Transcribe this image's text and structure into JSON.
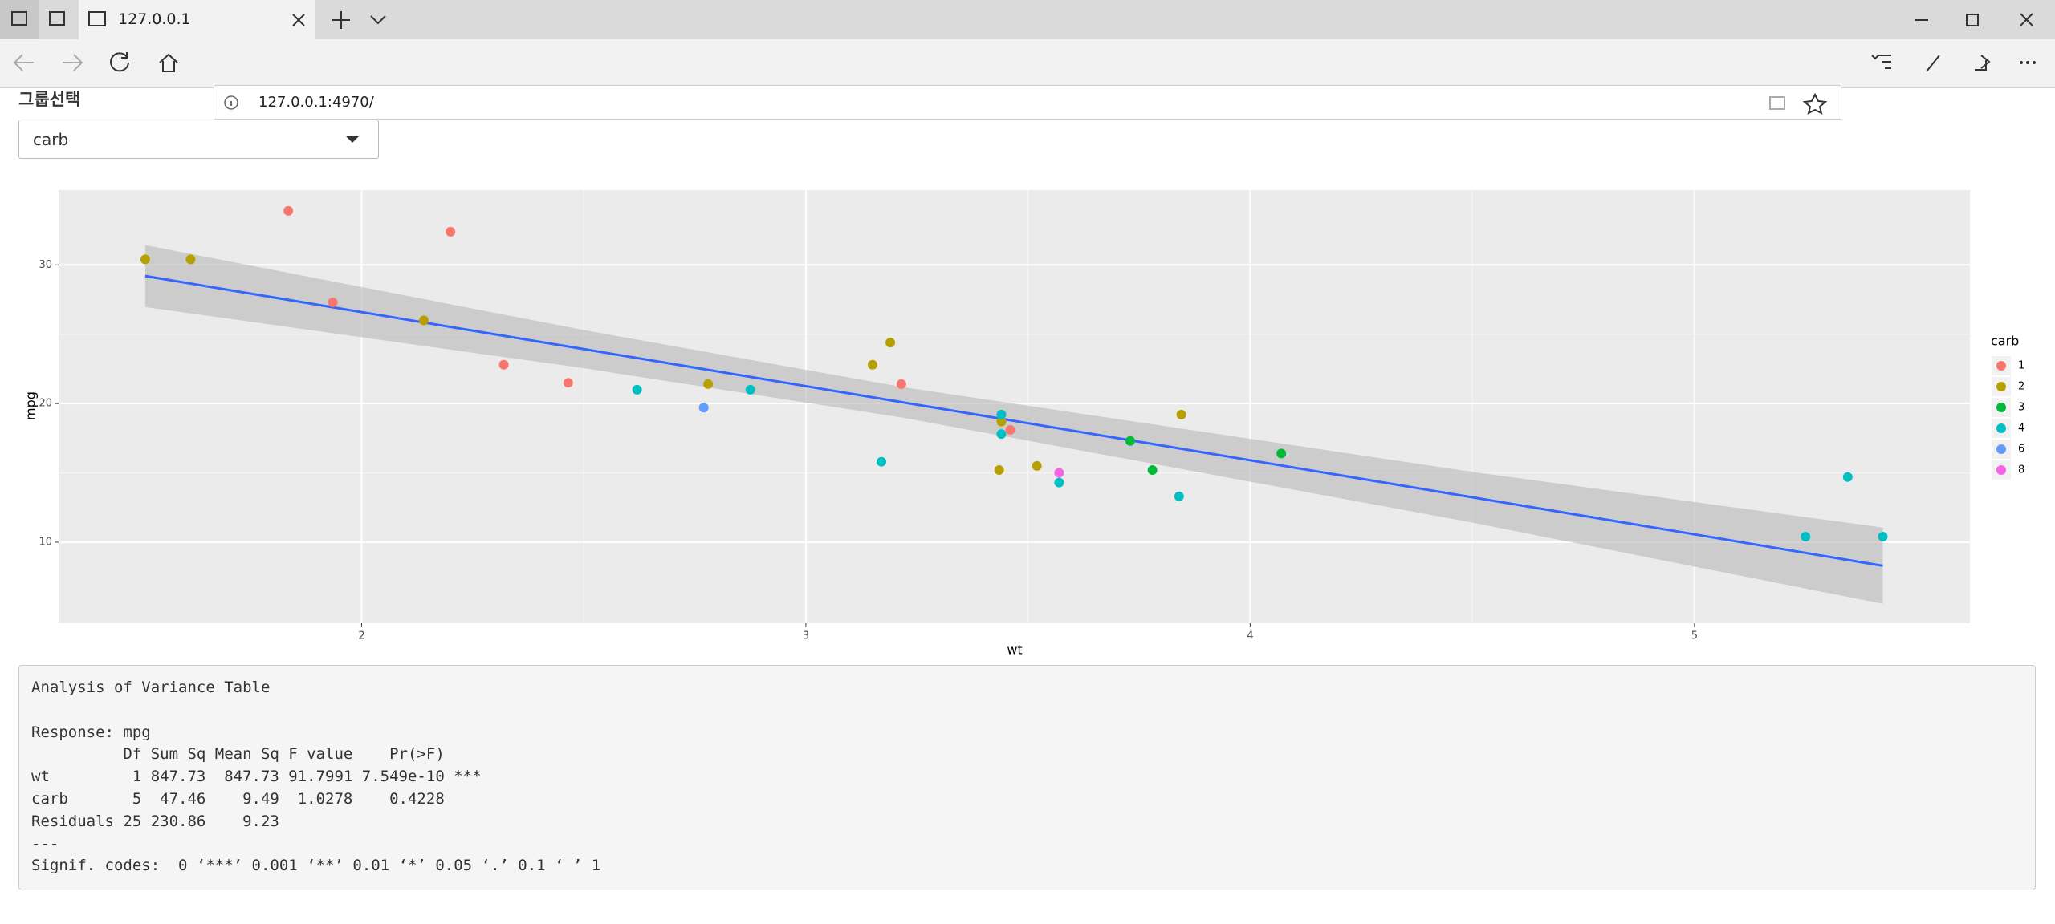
{
  "browser": {
    "tab_title": "127.0.0.1",
    "url": "127.0.0.1:4970/"
  },
  "control": {
    "label": "그룹선택",
    "selected": "carb"
  },
  "chart_data": {
    "type": "scatter",
    "x_label": "wt",
    "y_label": "mpg",
    "legend_title": "carb",
    "legend_position": "right",
    "grid": true,
    "xlim": [
      1.318,
      5.62
    ],
    "ylim": [
      4.15,
      35.4
    ],
    "xticks": [
      2,
      3,
      4,
      5
    ],
    "yticks": [
      10,
      20,
      30
    ],
    "series": [
      {
        "name": "1",
        "color": "#F8766D",
        "x": [
          2.32,
          3.215,
          3.46,
          2.2,
          1.835,
          2.465,
          1.935
        ],
        "values": [
          22.8,
          21.4,
          18.1,
          32.4,
          33.9,
          21.5,
          27.3
        ]
      },
      {
        "name": "2",
        "color": "#B79F00",
        "x": [
          3.44,
          3.19,
          3.15,
          1.615,
          3.52,
          3.435,
          3.845,
          2.14,
          1.513,
          2.78
        ],
        "values": [
          18.7,
          24.4,
          22.8,
          30.4,
          15.5,
          15.2,
          19.2,
          26.0,
          30.4,
          21.4
        ]
      },
      {
        "name": "3",
        "color": "#00BA38",
        "x": [
          4.07,
          3.73,
          3.78
        ],
        "values": [
          16.4,
          17.3,
          15.2
        ]
      },
      {
        "name": "4",
        "color": "#00BFC4",
        "x": [
          2.62,
          2.875,
          3.57,
          3.44,
          3.44,
          5.25,
          5.424,
          5.345,
          3.84,
          3.17
        ],
        "values": [
          21.0,
          21.0,
          14.3,
          19.2,
          17.8,
          10.4,
          10.4,
          14.7,
          13.3,
          15.8
        ]
      },
      {
        "name": "6",
        "color": "#619CFF",
        "x": [
          2.77
        ],
        "values": [
          19.7
        ]
      },
      {
        "name": "8",
        "color": "#F564E3",
        "x": [
          3.57
        ],
        "values": [
          15.0
        ]
      }
    ],
    "smooth": {
      "color": "#3366FF",
      "band_color": "#b8b8b8",
      "x": [
        1.513,
        2.5,
        3.217,
        4.5,
        5.424
      ],
      "fit": [
        29.199,
        23.925,
        20.093,
        13.237,
        8.296
      ],
      "lower": [
        26.96,
        22.55,
        18.99,
        11.41,
        5.55
      ],
      "upper": [
        31.43,
        25.3,
        21.19,
        15.07,
        11.05
      ]
    }
  },
  "anova": {
    "lines": [
      "Analysis of Variance Table",
      "Response: mpg",
      "          Df Sum Sq Mean Sq F value    Pr(>F)    ",
      "wt         1 847.73  847.73 91.7991 7.549e-10 ***",
      "carb       5  47.46    9.49  1.0278    0.4228    ",
      "Residuals 25 230.86    9.23                      ",
      "---",
      "Signif. codes:  0 ‘***’ 0.001 ‘**’ 0.01 ‘*’ 0.05 ‘.’ 0.1 ‘ ’ 1"
    ]
  }
}
